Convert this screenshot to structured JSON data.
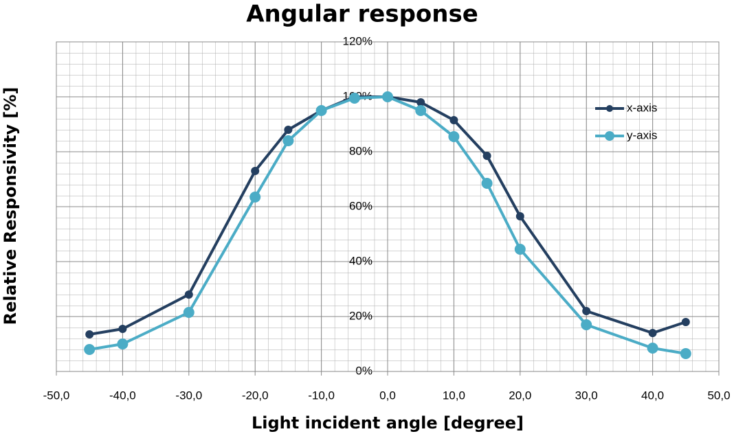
{
  "chart_data": {
    "type": "line",
    "title": "Angular response",
    "xlabel": "Light incident angle [degree]",
    "ylabel": "Relative Responsivity [%]",
    "xlim": [
      -50,
      50
    ],
    "xticks": [
      {
        "value": -50,
        "label": "-50,0"
      },
      {
        "value": -40,
        "label": "-40,0"
      },
      {
        "value": -30,
        "label": "-30,0"
      },
      {
        "value": -20,
        "label": "-20,0"
      },
      {
        "value": -10,
        "label": "-10,0"
      },
      {
        "value": 0,
        "label": "0,0"
      },
      {
        "value": 10,
        "label": "10,0"
      },
      {
        "value": 20,
        "label": "20,0"
      },
      {
        "value": 30,
        "label": "30,0"
      },
      {
        "value": 40,
        "label": "40,0"
      },
      {
        "value": 50,
        "label": "50,0"
      }
    ],
    "ylim": [
      0,
      120
    ],
    "yticks": [
      {
        "value": 0,
        "label": "0%"
      },
      {
        "value": 20,
        "label": "20%"
      },
      {
        "value": 40,
        "label": "40%"
      },
      {
        "value": 60,
        "label": "60%"
      },
      {
        "value": 80,
        "label": "80%"
      },
      {
        "value": 100,
        "label": "100%"
      },
      {
        "value": 120,
        "label": "120%"
      }
    ],
    "grid": true,
    "legend": "right",
    "x": [
      -45,
      -40,
      -30,
      -20,
      -15,
      -10,
      -5,
      0,
      5,
      10,
      15,
      20,
      30,
      40,
      45
    ],
    "series": [
      {
        "name": "x-axis",
        "color": "#243f60",
        "values": [
          13.5,
          15.5,
          28,
          73,
          88,
          95,
          100,
          100,
          98,
          91.5,
          78.5,
          56.5,
          22,
          14,
          18
        ]
      },
      {
        "name": "y-axis",
        "color": "#4bacc6",
        "values": [
          8,
          10,
          21.5,
          63.5,
          84,
          95,
          99.5,
          100,
          95,
          85.5,
          68.5,
          44.5,
          17,
          8.5,
          6.5
        ]
      }
    ]
  }
}
